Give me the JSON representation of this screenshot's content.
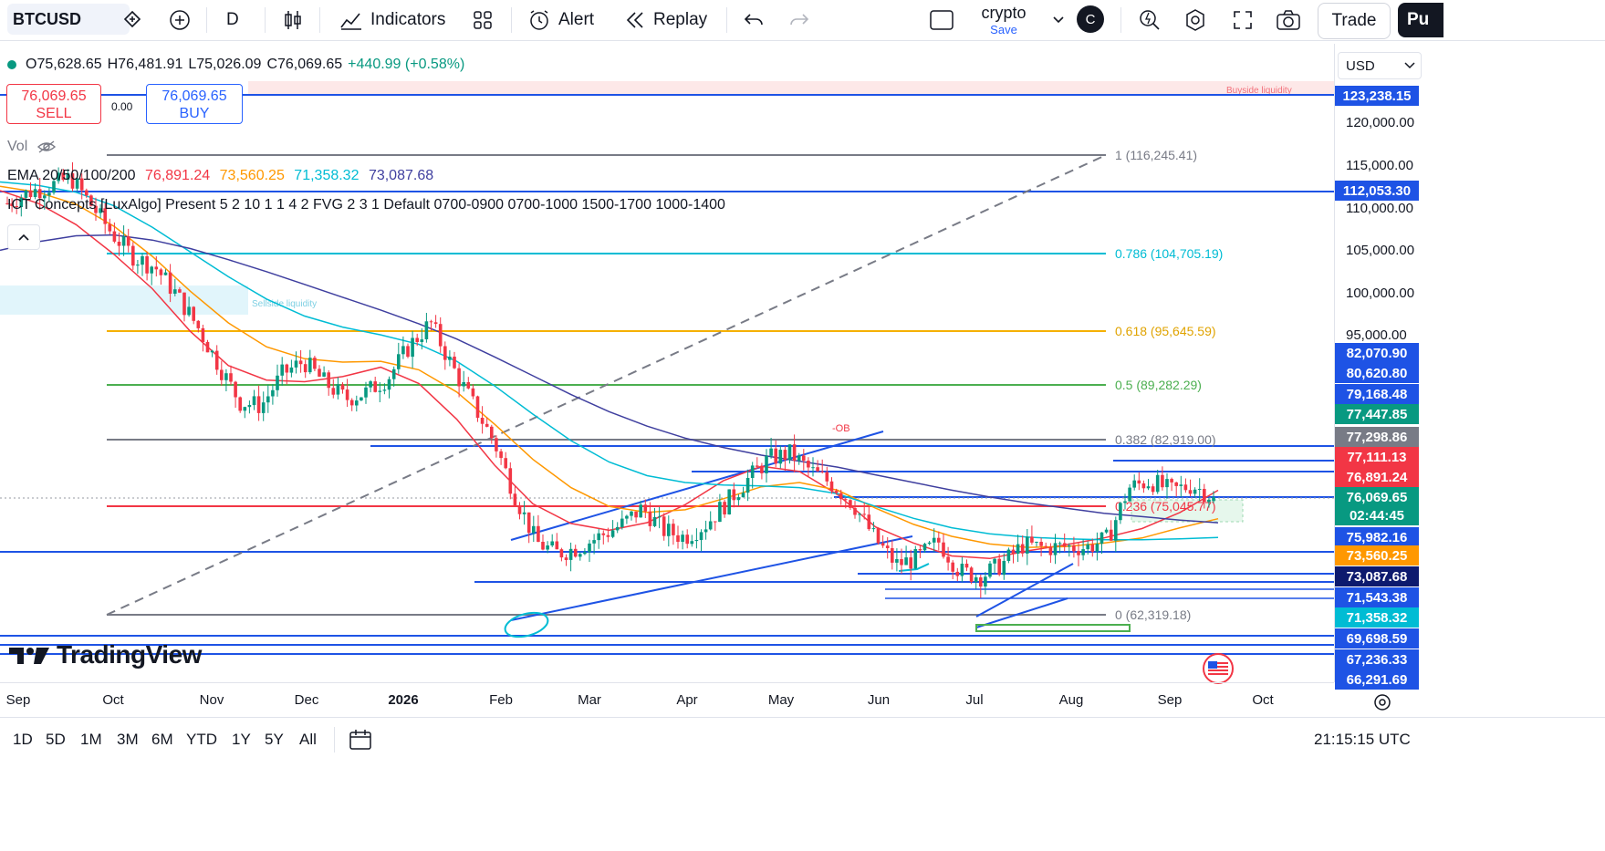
{
  "toolbar": {
    "symbol": "BTCUSD",
    "interval": "D",
    "indicators_label": "Indicators",
    "alert_label": "Alert",
    "replay_label": "Replay",
    "layout_name": "crypto",
    "layout_save": "Save",
    "user_initial": "C",
    "trade_label": "Trade",
    "publish_label": "Pu"
  },
  "legend": {
    "open": "O75,628.65",
    "high": "H76,481.91",
    "low": "L75,026.09",
    "close": "C76,069.65",
    "change": "+440.99 (+0.58%)",
    "sell_price": "76,069.65",
    "sell_label": "SELL",
    "buy_price": "76,069.65",
    "buy_label": "BUY",
    "spread": "0.00",
    "vol_label": "Vol",
    "ema_label": "EMA 20/50/100/200",
    "ema_values": [
      "76,891.24",
      "73,560.25",
      "71,358.32",
      "73,087.68"
    ],
    "ict_label": "ICT Concepts [LuxAlgo] Present 5 2 10 1 1 4 2 FVG 2 3 1 Default 0700-0900 0700-1000 1500-1700 1000-1400"
  },
  "currency": "USD",
  "logo_text": "TradingView",
  "price_scale": {
    "ticks": [
      "120,000.00",
      "115,000.00",
      "110,000.00",
      "105,000.00",
      "100,000.00",
      "95,000.00"
    ],
    "tags": [
      {
        "value": "123,238.15",
        "color": "#1e53e5"
      },
      {
        "value": "112,053.30",
        "color": "#1e53e5"
      },
      {
        "value": "82,070.90",
        "color": "#1e53e5"
      },
      {
        "value": "80,620.80",
        "color": "#1e53e5"
      },
      {
        "value": "79,168.48",
        "color": "#1e53e5"
      },
      {
        "value": "77,447.85",
        "color": "#089981"
      },
      {
        "value": "77,298.86",
        "color": "#787b86"
      },
      {
        "value": "77,111.13",
        "color": "#f23645"
      },
      {
        "value": "76,891.24",
        "color": "#f23645"
      },
      {
        "value": "76,069.65",
        "color": "#089981"
      },
      {
        "value": "02:44:45",
        "color": "#089981"
      },
      {
        "value": "75,982.16",
        "color": "#1e53e5"
      },
      {
        "value": "73,560.25",
        "color": "#ff9800"
      },
      {
        "value": "73,087.68",
        "color": "#0d1a6e"
      },
      {
        "value": "71,543.38",
        "color": "#1e53e5"
      },
      {
        "value": "71,358.32",
        "color": "#00bcd4"
      },
      {
        "value": "69,698.59",
        "color": "#1e53e5"
      },
      {
        "value": "67,236.33",
        "color": "#1e53e5"
      },
      {
        "value": "66,291.69",
        "color": "#1e53e5"
      }
    ]
  },
  "fib_levels": [
    {
      "label": "1 (116,245.41)",
      "color": "#787b86"
    },
    {
      "label": "0.786 (104,705.19)",
      "color": "#00bcd4"
    },
    {
      "label": "0.618 (95,645.59)",
      "color": "#f5b000"
    },
    {
      "label": "0.5 (89,282.29)",
      "color": "#4caf50"
    },
    {
      "label": "0.382 (82,919.00)",
      "color": "#787b86"
    },
    {
      "label": "0.236 (75,045.77)",
      "color": "#f23645"
    },
    {
      "label": "0 (62,319.18)",
      "color": "#787b86"
    }
  ],
  "annotations": {
    "buyside": "Buyside liquidity",
    "sellside": "Sellside liquidity",
    "ob": "-OB"
  },
  "time_axis": [
    "Sep",
    "Oct",
    "Nov",
    "Dec",
    "2026",
    "Feb",
    "Mar",
    "Apr",
    "May",
    "Jun",
    "Jul",
    "Aug",
    "Sep",
    "Oct"
  ],
  "ranges": [
    "1D",
    "5D",
    "1M",
    "3M",
    "6M",
    "YTD",
    "1Y",
    "5Y",
    "All"
  ],
  "clock": "21:15:15 UTC",
  "chart_data": {
    "type": "candlestick",
    "symbol": "BTCUSD",
    "interval": "D",
    "x_labels": [
      "Sep",
      "Oct",
      "Nov",
      "Dec",
      "2026",
      "Feb",
      "Mar",
      "Apr",
      "May",
      "Jun",
      "Jul",
      "Aug",
      "Sep",
      "Oct"
    ],
    "ylim": [
      66000,
      124000
    ],
    "last": {
      "open": 75628.65,
      "high": 76481.91,
      "low": 75026.09,
      "close": 76069.65
    },
    "close_path": [
      110500,
      111800,
      112500,
      113500,
      110200,
      106800,
      104200,
      103000,
      99800,
      96000,
      91500,
      87200,
      86800,
      90500,
      92000,
      89500,
      87600,
      88400,
      90100,
      93800,
      96500,
      91500,
      87000,
      82600,
      76200,
      70800,
      69500,
      70200,
      71500,
      72800,
      74800,
      72200,
      71400,
      72900,
      75500,
      78200,
      80600,
      81200,
      79100,
      77600,
      75200,
      71200,
      68200,
      68900,
      70900,
      67400,
      66800,
      68200,
      70500,
      70100,
      70300,
      70200,
      71200,
      77200,
      78000,
      76800,
      77500,
      76069.65
    ],
    "series": [
      {
        "name": "EMA 20",
        "color": "#f23645",
        "last": 76891.24,
        "values": [
          112000,
          110500,
          108000,
          104500,
          100500,
          95500,
          91500,
          89800,
          89600,
          90200,
          91300,
          89400,
          85200,
          79800,
          75300,
          73000,
          72200,
          73100,
          75200,
          78000,
          79700,
          79100,
          76400,
          72600,
          70700,
          69200,
          68900,
          69800,
          70500,
          71300,
          72400,
          74300,
          76891.24
        ]
      },
      {
        "name": "EMA 50",
        "color": "#ff9800",
        "last": 73560.25,
        "values": [
          112500,
          111800,
          110400,
          107800,
          104300,
          100200,
          96500,
          93700,
          92300,
          91900,
          92000,
          91000,
          88400,
          84600,
          80500,
          77200,
          75000,
          74300,
          74600,
          75900,
          77300,
          77800,
          76900,
          74800,
          72900,
          71500,
          70600,
          70200,
          70300,
          70700,
          71300,
          72500,
          73560.25
        ]
      },
      {
        "name": "EMA 100",
        "color": "#00bcd4",
        "last": 71358.32,
        "values": [
          113000,
          112600,
          111800,
          110200,
          107700,
          104800,
          101900,
          99300,
          97300,
          96000,
          95100,
          94000,
          92000,
          89100,
          85800,
          82700,
          80200,
          78600,
          77800,
          77500,
          77400,
          77200,
          76500,
          75000,
          73600,
          72500,
          71800,
          71400,
          71200,
          71100,
          71100,
          71200,
          71358.32
        ]
      },
      {
        "name": "EMA 200",
        "color": "#3f3f9f",
        "last": 73087.68,
        "values": [
          105000,
          106000,
          106700,
          106800,
          106200,
          105200,
          103900,
          102500,
          101000,
          99500,
          98000,
          96400,
          94600,
          92500,
          90300,
          88100,
          86100,
          84400,
          83000,
          81900,
          81000,
          80300,
          79600,
          78700,
          77800,
          76900,
          76100,
          75400,
          74800,
          74200,
          73800,
          73400,
          73087.68
        ]
      }
    ]
  }
}
